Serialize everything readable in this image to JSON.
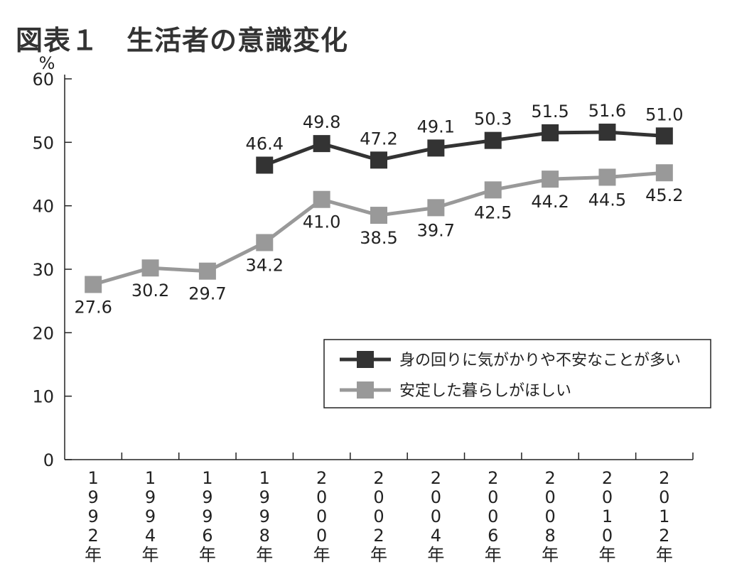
{
  "chart_data": {
    "type": "line",
    "title": "図表１　生活者の意識変化",
    "ylabel": "%",
    "xlabel": "",
    "ylim": [
      0,
      60
    ],
    "yticks": [
      0,
      10,
      20,
      30,
      40,
      50,
      60
    ],
    "grid": false,
    "legend_position": "bottom-right",
    "categories": [
      "1992年",
      "1994年",
      "1996年",
      "1998年",
      "2000年",
      "2002年",
      "2004年",
      "2006年",
      "2008年",
      "2010年",
      "2012年"
    ],
    "category_chars": [
      [
        "1",
        "9",
        "9",
        "2",
        "年"
      ],
      [
        "1",
        "9",
        "9",
        "4",
        "年"
      ],
      [
        "1",
        "9",
        "9",
        "6",
        "年"
      ],
      [
        "1",
        "9",
        "9",
        "8",
        "年"
      ],
      [
        "2",
        "0",
        "0",
        "0",
        "年"
      ],
      [
        "2",
        "0",
        "0",
        "2",
        "年"
      ],
      [
        "2",
        "0",
        "0",
        "4",
        "年"
      ],
      [
        "2",
        "0",
        "0",
        "6",
        "年"
      ],
      [
        "2",
        "0",
        "0",
        "8",
        "年"
      ],
      [
        "2",
        "0",
        "1",
        "0",
        "年"
      ],
      [
        "2",
        "0",
        "1",
        "2",
        "年"
      ]
    ],
    "series": [
      {
        "name": "身の回りに気がかりや不安なことが多い",
        "color": "#333333",
        "values": [
          null,
          null,
          null,
          46.4,
          49.8,
          47.2,
          49.1,
          50.3,
          51.5,
          51.6,
          51.0
        ],
        "labels": [
          "",
          "",
          "",
          "46.4",
          "49.8",
          "47.2",
          "49.1",
          "50.3",
          "51.5",
          "51.6",
          "51.0"
        ],
        "label_position": "above"
      },
      {
        "name": "安定した暮らしがほしい",
        "color": "#999999",
        "values": [
          27.6,
          30.2,
          29.7,
          34.2,
          41.0,
          38.5,
          39.7,
          42.5,
          44.2,
          44.5,
          45.2
        ],
        "labels": [
          "27.6",
          "30.2",
          "29.7",
          "34.2",
          "41.0",
          "38.5",
          "39.7",
          "42.5",
          "44.2",
          "44.5",
          "45.2"
        ],
        "label_position": "below"
      }
    ]
  }
}
